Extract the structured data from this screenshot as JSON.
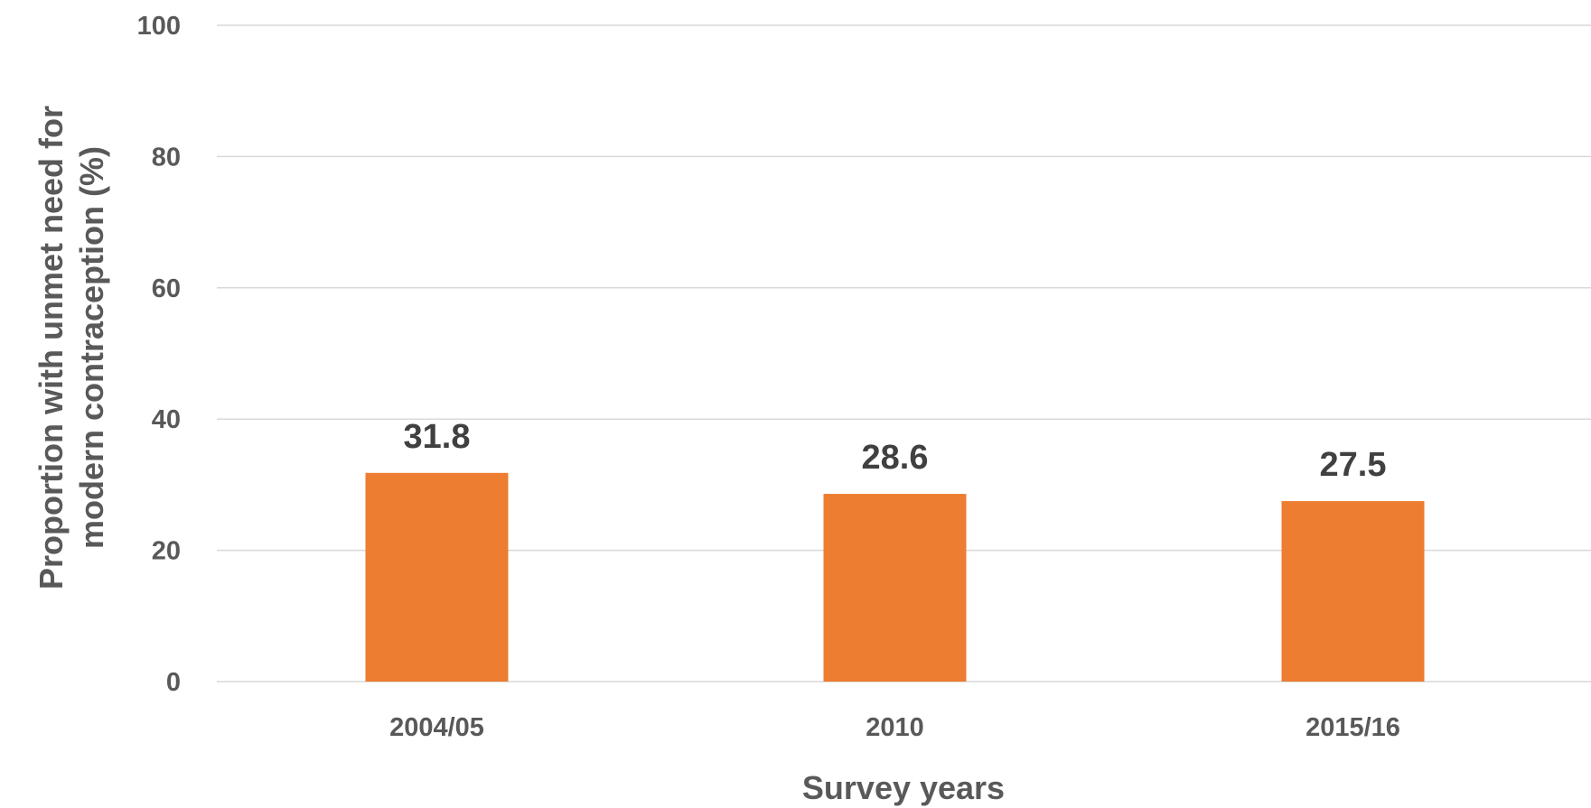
{
  "chart_data": {
    "type": "bar",
    "categories": [
      "2004/05",
      "2010",
      "2015/16"
    ],
    "values": [
      31.8,
      28.6,
      27.5
    ],
    "data_labels": [
      "31.8",
      "28.6",
      "27.5"
    ],
    "xlabel": "Survey years",
    "ylabel_lines": [
      "Proportion with unmet need for",
      "modern contraception (%)"
    ],
    "ylim": [
      0,
      100
    ],
    "yticks": [
      "0",
      "20",
      "40",
      "60",
      "80",
      "100"
    ],
    "grid": true,
    "legend": "none",
    "bar_color": "#ED7D31"
  }
}
